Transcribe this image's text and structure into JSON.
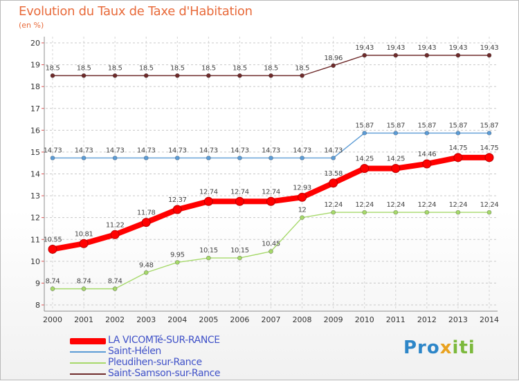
{
  "chart_data": {
    "type": "line",
    "title": "Evolution du Taux de Taxe d'Habitation",
    "ylabel": "(en %)",
    "ylim": [
      8,
      20
    ],
    "yticks": [
      "8",
      "9",
      "10",
      "11",
      "12",
      "13",
      "14",
      "15",
      "16",
      "17",
      "18",
      "19",
      "20"
    ],
    "x": [
      "2000",
      "2001",
      "2002",
      "2003",
      "2004",
      "2005",
      "2006",
      "2007",
      "2008",
      "2009",
      "2010",
      "2011",
      "2012",
      "2013",
      "2014"
    ],
    "series": [
      {
        "name": "Saint-Samson-sur-Rance",
        "color": "#6e2a2a",
        "values": [
          18.5,
          18.5,
          18.5,
          18.5,
          18.5,
          18.5,
          18.5,
          18.5,
          18.5,
          18.96,
          19.43,
          19.43,
          19.43,
          19.43,
          19.43
        ],
        "labels": [
          "18.5",
          "18.5",
          "18.5",
          "18.5",
          "18.5",
          "18.5",
          "18.5",
          "18.5",
          "18.5",
          "18.96",
          "19.43",
          "19.43",
          "19.43",
          "19.43",
          "19.43"
        ]
      },
      {
        "name": "Saint-Hélen",
        "color": "#5b9bd5",
        "values": [
          14.73,
          14.73,
          14.73,
          14.73,
          14.73,
          14.73,
          14.73,
          14.73,
          14.73,
          14.73,
          15.87,
          15.87,
          15.87,
          15.87,
          15.87
        ],
        "labels": [
          "14.73",
          "14.73",
          "14.73",
          "14.73",
          "14.73",
          "14.73",
          "14.73",
          "14.73",
          "14.73",
          "14.73",
          "15.87",
          "15.87",
          "15.87",
          "15.87",
          "15.87"
        ]
      },
      {
        "name": "Pleudihen-sur-Rance",
        "color": "#a6d96a",
        "values": [
          8.74,
          8.74,
          8.74,
          9.48,
          9.95,
          10.15,
          10.15,
          10.45,
          12,
          12.24,
          12.24,
          12.24,
          12.24,
          12.24,
          12.24
        ],
        "labels": [
          "8.74",
          "8.74",
          "8.74",
          "9.48",
          "9.95",
          "10.15",
          "10.15",
          "10.45",
          "12",
          "12.24",
          "12.24",
          "12.24",
          "12.24",
          "12.24",
          "12.24"
        ]
      },
      {
        "name": "LA VICOMTé-SUR-RANCE",
        "color": "#ff0000",
        "values": [
          10.55,
          10.81,
          11.22,
          11.78,
          12.37,
          12.74,
          12.74,
          12.74,
          12.93,
          13.58,
          14.25,
          14.25,
          14.46,
          14.75,
          14.75
        ],
        "labels": [
          "10.55",
          "10.81",
          "11.22",
          "11.78",
          "12.37",
          "12.74",
          "12.74",
          "12.74",
          "12.93",
          "13.58",
          "14.25",
          "14.25",
          "14.46",
          "14.75",
          "14.75"
        ]
      }
    ]
  },
  "legend": [
    {
      "name": "LA VICOMTé-SUR-RANCE",
      "color": "#ff0000",
      "thick": true
    },
    {
      "name": "Saint-Hélen",
      "color": "#5b9bd5",
      "thick": false
    },
    {
      "name": "Pleudihen-sur-Rance",
      "color": "#a6d96a",
      "thick": false
    },
    {
      "name": "Saint-Samson-sur-Rance",
      "color": "#6e2a2a",
      "thick": false
    }
  ],
  "logo": {
    "part1": "Pro",
    "part2": "x",
    "part3": "iti"
  }
}
